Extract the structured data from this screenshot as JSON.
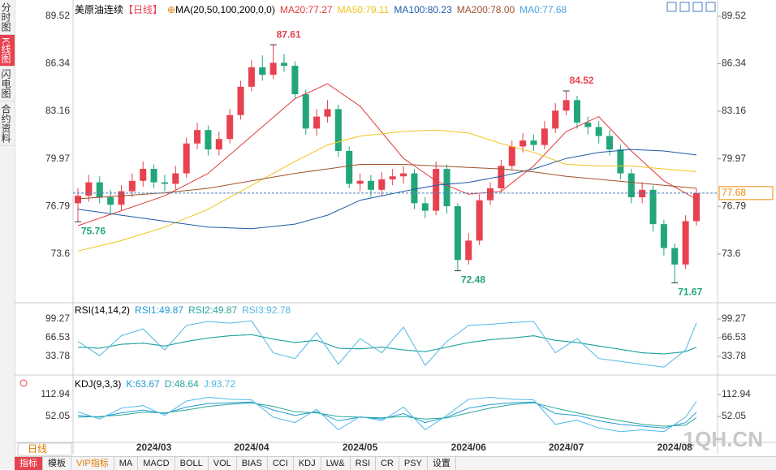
{
  "sidebar": {
    "tabs": [
      "分时图",
      "K线图",
      "闪电图",
      "合约资料"
    ]
  },
  "toolbar": {
    "period_button": "日线",
    "items": [
      "指标",
      "模板",
      "VIP指标",
      "MA",
      "MACD",
      "BOLL",
      "VOL",
      "BIAS",
      "CCI",
      "KDJ",
      "LW&",
      "RSI",
      "CR",
      "PSY",
      "设置"
    ]
  },
  "watermark": "1QH.CN",
  "chart_data": {
    "type": "candlestick",
    "title": "美原油连续",
    "period": "【日线】",
    "ma_label": "MA(20,50,100,200,0,0)",
    "up_color": "#e8414f",
    "down_color": "#22a57a",
    "open": [
      77.0,
      77.5,
      78.4,
      77.4,
      76.9,
      77.8,
      78.5,
      79.3,
      78.4,
      78.3,
      79.0,
      81.0,
      81.9,
      80.6,
      81.3,
      82.9,
      84.8,
      86.1,
      85.6,
      86.4,
      86.2,
      84.3,
      82.0,
      82.8,
      83.3,
      80.5,
      78.3,
      78.5,
      77.9,
      78.6,
      78.8,
      79.0,
      77.0,
      76.5,
      79.3,
      76.8,
      73.2,
      74.5,
      77.2,
      78.0,
      79.5,
      80.8,
      81.2,
      80.9,
      82.0,
      83.2,
      83.9,
      82.4,
      82.1,
      81.5,
      80.6,
      79.0,
      77.4,
      77.9,
      75.6,
      74.0,
      72.9,
      75.8
    ],
    "high": [
      78.0,
      78.9,
      78.8,
      77.9,
      78.2,
      79.0,
      79.8,
      79.6,
      78.9,
      79.5,
      81.4,
      82.4,
      82.2,
      81.8,
      83.3,
      85.2,
      86.6,
      86.9,
      87.61,
      87.0,
      86.5,
      84.6,
      83.3,
      83.9,
      83.6,
      80.8,
      79.0,
      78.9,
      79.1,
      79.3,
      79.5,
      79.3,
      77.4,
      79.8,
      79.6,
      77.0,
      75.0,
      77.6,
      78.4,
      79.9,
      81.2,
      81.7,
      81.6,
      82.5,
      83.7,
      84.52,
      84.2,
      82.8,
      82.5,
      81.9,
      80.9,
      79.3,
      78.4,
      78.2,
      75.9,
      74.3,
      76.2,
      78.0
    ],
    "low": [
      75.76,
      77.1,
      77.0,
      76.3,
      76.5,
      77.4,
      78.1,
      78.0,
      77.8,
      77.9,
      78.7,
      80.6,
      80.2,
      80.2,
      81.0,
      82.6,
      84.5,
      85.2,
      85.3,
      85.8,
      84.0,
      81.6,
      81.5,
      82.4,
      80.1,
      78.0,
      77.8,
      77.4,
      77.5,
      78.2,
      78.3,
      76.6,
      76.0,
      76.2,
      76.3,
      72.48,
      72.9,
      74.2,
      76.9,
      77.7,
      79.2,
      80.4,
      80.5,
      80.6,
      81.7,
      82.9,
      82.0,
      81.6,
      81.0,
      80.2,
      78.6,
      77.0,
      77.0,
      75.1,
      73.5,
      71.67,
      72.6,
      75.5
    ],
    "close": [
      77.5,
      78.4,
      77.4,
      76.9,
      77.8,
      78.5,
      79.3,
      78.4,
      78.3,
      79.0,
      81.0,
      81.9,
      80.6,
      81.3,
      82.9,
      84.8,
      86.1,
      85.6,
      86.4,
      86.2,
      84.3,
      82.0,
      82.8,
      83.3,
      80.5,
      78.3,
      78.5,
      77.9,
      78.6,
      78.8,
      79.0,
      77.0,
      76.5,
      79.3,
      76.8,
      73.2,
      74.5,
      77.2,
      78.0,
      79.5,
      80.8,
      81.2,
      80.9,
      82.0,
      83.2,
      83.9,
      82.4,
      82.1,
      81.5,
      80.6,
      79.0,
      77.4,
      77.9,
      75.6,
      74.0,
      72.9,
      75.8,
      77.68
    ],
    "ylim": [
      70.5,
      89.79
    ],
    "yticks": [
      89.52,
      86.34,
      83.16,
      79.97,
      76.79,
      73.6
    ],
    "xlim": [
      0,
      57
    ],
    "x_ticks": [
      {
        "value": 7,
        "label": "2024/03"
      },
      {
        "value": 16,
        "label": "2024/04"
      },
      {
        "value": 26,
        "label": "2024/05"
      },
      {
        "value": 36,
        "label": "2024/06"
      },
      {
        "value": 45,
        "label": "2024/07"
      },
      {
        "value": 55,
        "label": "2024/08"
      }
    ],
    "last_price": 77.68,
    "last_price_color": "#f08a00",
    "annotations": [
      {
        "value": 87.61,
        "candle": 18,
        "color": "#e8414f",
        "side": "high"
      },
      {
        "value": 75.76,
        "candle": 0,
        "color": "#22a57a",
        "side": "low"
      },
      {
        "value": 72.48,
        "candle": 35,
        "color": "#22a57a",
        "side": "low"
      },
      {
        "value": 84.52,
        "candle": 45,
        "color": "#e8414f",
        "side": "high"
      },
      {
        "value": 71.67,
        "candle": 55,
        "color": "#22a57a",
        "side": "low"
      }
    ],
    "ma_series": [
      {
        "label": "MA20:77.27",
        "color": "#e03c3c",
        "x": [
          0,
          4,
          8,
          12,
          16,
          20,
          23,
          26,
          30,
          33,
          36,
          39,
          42,
          45,
          48,
          51,
          54,
          57
        ],
        "values": [
          75.5,
          76.5,
          77.5,
          79.0,
          81.5,
          84.0,
          85.0,
          83.5,
          80.0,
          78.5,
          77.6,
          77.8,
          79.5,
          81.8,
          82.8,
          80.5,
          78.5,
          77.27
        ]
      },
      {
        "label": "MA50:79.11",
        "color": "#f0c419",
        "x": [
          0,
          4,
          8,
          12,
          16,
          20,
          23,
          26,
          30,
          33,
          36,
          39,
          42,
          45,
          48,
          51,
          54,
          57
        ],
        "values": [
          73.8,
          74.5,
          75.4,
          76.6,
          78.2,
          79.8,
          80.9,
          81.5,
          81.8,
          81.9,
          81.7,
          81.0,
          80.4,
          79.6,
          79.5,
          79.5,
          79.3,
          79.11
        ]
      },
      {
        "label": "MA100:80.23",
        "color": "#1f5aa8",
        "x": [
          0,
          4,
          8,
          12,
          16,
          20,
          23,
          26,
          30,
          33,
          36,
          39,
          42,
          45,
          48,
          51,
          54,
          57
        ],
        "values": [
          76.6,
          76.2,
          75.8,
          75.4,
          75.3,
          75.6,
          76.2,
          77.2,
          77.8,
          78.2,
          78.4,
          78.8,
          79.3,
          80.0,
          80.4,
          80.6,
          80.5,
          80.23
        ]
      },
      {
        "label": "MA200:78.00",
        "color": "#a0522d",
        "x": [
          0,
          4,
          8,
          12,
          16,
          20,
          23,
          26,
          30,
          33,
          36,
          39,
          42,
          45,
          48,
          51,
          54,
          57
        ],
        "values": [
          77.3,
          77.5,
          77.7,
          78.0,
          78.5,
          79.0,
          79.3,
          79.6,
          79.6,
          79.5,
          79.4,
          79.3,
          79.1,
          78.8,
          78.6,
          78.4,
          78.2,
          78.0
        ]
      },
      {
        "label": "MA0:77.68",
        "color": "#4aa3df"
      }
    ],
    "rsi": {
      "label": "RSI(14,14,2)",
      "ylim": [
        3.9,
        106.4
      ],
      "yticks": [
        99.27,
        66.53,
        33.78
      ],
      "x": [
        0,
        2,
        4,
        6,
        8,
        10,
        12,
        14,
        16,
        18,
        20,
        22,
        24,
        26,
        28,
        30,
        32,
        34,
        36,
        38,
        40,
        42,
        44,
        46,
        48,
        50,
        52,
        54,
        56,
        57
      ],
      "series": [
        {
          "label": "RSI1:49.87",
          "color": "#1e9bd7",
          "values": [
            50,
            48,
            55,
            57,
            52,
            60,
            66,
            70,
            72,
            64,
            58,
            62,
            48,
            47,
            50,
            45,
            42,
            50,
            58,
            63,
            66,
            70,
            62,
            58,
            52,
            46,
            40,
            38,
            42,
            49.87
          ]
        },
        {
          "label": "RSI2:49.87",
          "color": "#26a69a",
          "values": [
            50,
            48,
            55,
            57,
            52,
            60,
            66,
            70,
            72,
            64,
            58,
            62,
            48,
            47,
            50,
            45,
            42,
            50,
            58,
            63,
            66,
            70,
            62,
            58,
            52,
            46,
            40,
            38,
            42,
            49.87
          ]
        },
        {
          "label": "RSI3:92.78",
          "color": "#4fb8e8",
          "values": [
            60,
            35,
            70,
            82,
            45,
            88,
            95,
            92,
            96,
            40,
            30,
            75,
            20,
            65,
            40,
            85,
            18,
            60,
            88,
            90,
            93,
            95,
            40,
            65,
            30,
            25,
            20,
            15,
            45,
            92.78
          ]
        }
      ]
    },
    "kdj": {
      "label": "KDJ(9,3,3)",
      "ylim": [
        -20,
        131
      ],
      "yticks": [
        112.94,
        52.05
      ],
      "x": [
        0,
        2,
        4,
        6,
        8,
        10,
        12,
        14,
        16,
        18,
        20,
        22,
        24,
        26,
        28,
        30,
        32,
        34,
        36,
        38,
        40,
        42,
        44,
        46,
        48,
        50,
        52,
        54,
        56,
        57
      ],
      "series": [
        {
          "label": "K:63.67",
          "color": "#1e9bd7",
          "values": [
            55,
            50,
            62,
            70,
            60,
            78,
            88,
            90,
            92,
            70,
            55,
            65,
            40,
            50,
            45,
            60,
            35,
            50,
            75,
            85,
            90,
            92,
            60,
            55,
            40,
            30,
            25,
            20,
            35,
            63.67
          ]
        },
        {
          "label": "D:48.64",
          "color": "#26a69a",
          "values": [
            50,
            52,
            56,
            64,
            62,
            70,
            80,
            86,
            90,
            80,
            65,
            62,
            52,
            50,
            48,
            52,
            45,
            48,
            62,
            75,
            85,
            90,
            75,
            62,
            50,
            40,
            30,
            25,
            28,
            48.64
          ]
        },
        {
          "label": "J:93.72",
          "color": "#4fb8e8",
          "values": [
            65,
            45,
            75,
            82,
            55,
            95,
            105,
            100,
            98,
            50,
            35,
            72,
            15,
            52,
            40,
            78,
            15,
            55,
            100,
            105,
            100,
            98,
            30,
            42,
            20,
            10,
            15,
            10,
            50,
            93.72
          ]
        }
      ]
    }
  }
}
